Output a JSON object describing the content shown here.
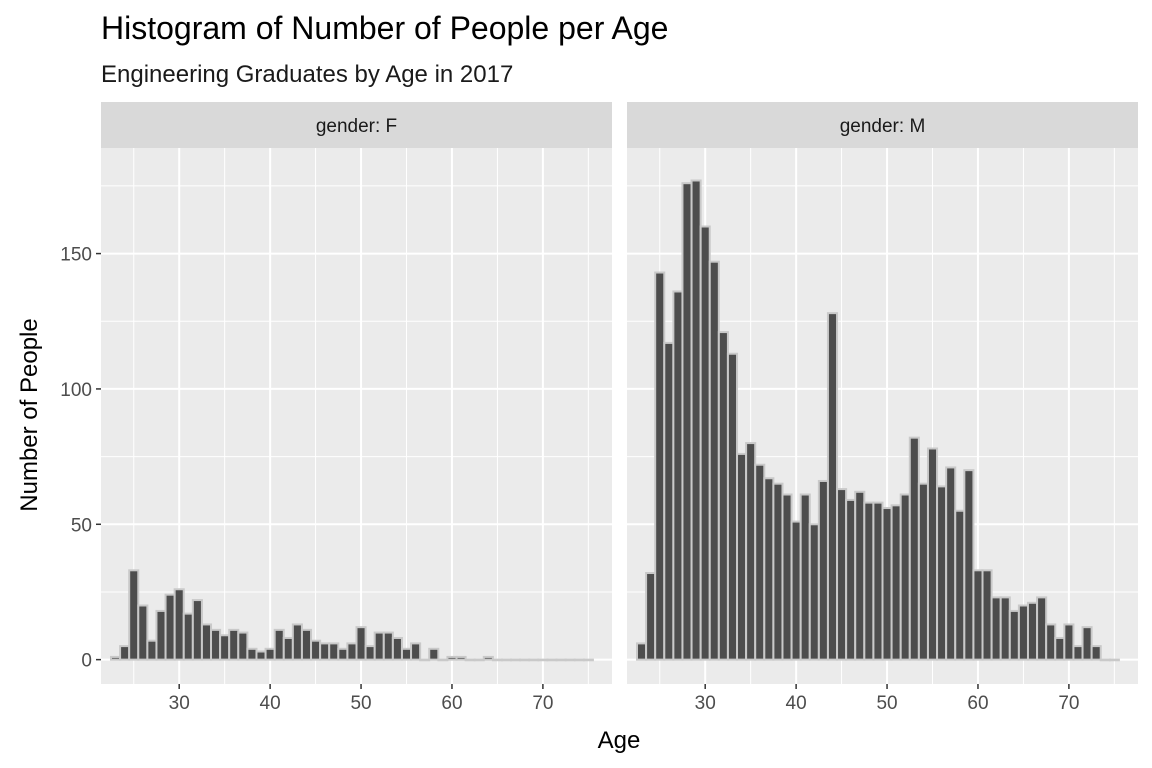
{
  "chart_data": {
    "type": "bar",
    "title": "Histogram of Number of People per Age",
    "subtitle": "Engineering Graduates by Age in 2017",
    "xlabel": "Age",
    "ylabel": "Number of People",
    "xlim": [
      21.4,
      77.6
    ],
    "ylim": [
      -9,
      189
    ],
    "x_ticks": [
      30,
      40,
      50,
      60,
      70
    ],
    "y_ticks": [
      0,
      50,
      100,
      150
    ],
    "bin_width": 1,
    "bin_start": 22.5,
    "bin_centers": [
      23,
      24,
      25,
      26,
      27,
      28,
      29,
      30,
      31,
      32,
      33,
      34,
      35,
      36,
      37,
      38,
      39,
      40,
      41,
      42,
      43,
      44,
      45,
      46,
      47,
      48,
      49,
      50,
      51,
      52,
      53,
      54,
      55,
      56,
      57,
      58,
      59,
      60,
      61,
      62,
      63,
      64,
      65,
      66,
      67,
      68,
      69,
      70,
      71,
      72,
      73,
      74,
      75
    ],
    "grid": true,
    "legend": "none",
    "colors": {
      "bar_fill": "#4d4d4d",
      "bar_outline": "#c9c9c9",
      "panel_bg": "#ebebeb",
      "strip_bg": "#d9d9d9",
      "grid": "#ffffff"
    },
    "panels": [
      {
        "strip": "gender: F",
        "values": [
          1,
          5,
          33,
          20,
          7,
          18,
          24,
          26,
          17,
          22,
          13,
          11,
          9,
          11,
          10,
          4,
          3,
          4,
          11,
          8,
          13,
          11,
          7,
          6,
          6,
          4,
          6,
          12,
          5,
          10,
          10,
          8,
          4,
          6,
          0,
          4,
          0,
          1,
          1,
          0,
          0,
          1,
          0,
          0,
          0,
          0,
          0,
          0,
          0,
          0,
          0,
          0,
          0
        ]
      },
      {
        "strip": "gender: M",
        "values": [
          6,
          32,
          143,
          117,
          136,
          176,
          177,
          160,
          147,
          121,
          113,
          76,
          80,
          72,
          67,
          65,
          61,
          51,
          61,
          50,
          66,
          128,
          63,
          59,
          62,
          58,
          58,
          56,
          57,
          61,
          82,
          65,
          78,
          64,
          71,
          55,
          70,
          33,
          33,
          23,
          23,
          18,
          20,
          21,
          23,
          13,
          8,
          13,
          5,
          12,
          5,
          0,
          0
        ]
      }
    ]
  }
}
